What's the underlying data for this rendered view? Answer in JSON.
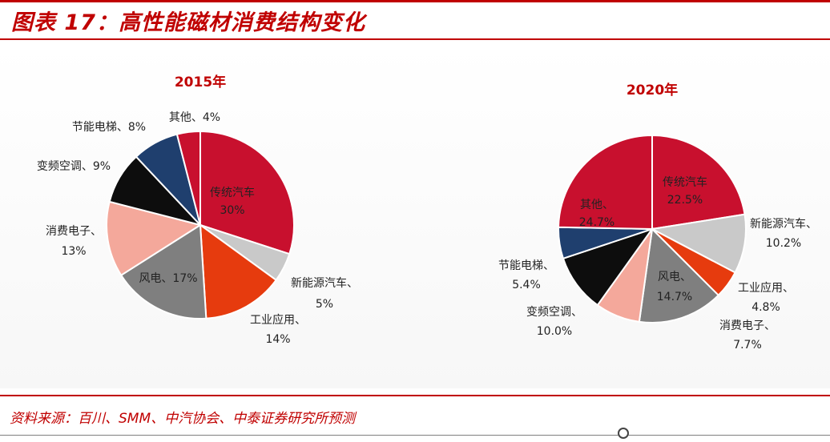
{
  "header": {
    "title": "图表 17：高性能磁材消费结构变化"
  },
  "footer": {
    "source": "资料来源：百川、SMM、中汽协会、中泰证券研究所预测"
  },
  "colors": {
    "accent": "#c00000"
  },
  "chart_data": [
    {
      "type": "pie",
      "title": "2015年",
      "slices": [
        {
          "label": "传统汽车",
          "value": 30,
          "display": "30%",
          "color": "#c8102e"
        },
        {
          "label": "新能源汽车、",
          "value": 5,
          "display": "5%",
          "color": "#c9c9c9"
        },
        {
          "label": "工业应用、",
          "value": 14,
          "display": "14%",
          "color": "#e63b0e"
        },
        {
          "label": "风电、17%",
          "value": 17,
          "display": "",
          "color": "#7f7f7f"
        },
        {
          "label": "消费电子、",
          "value": 13,
          "display": "13%",
          "color": "#f4a89b"
        },
        {
          "label": "变频空调、9%",
          "value": 9,
          "display": "",
          "color": "#0d0d0d"
        },
        {
          "label": "节能电梯、8%",
          "value": 8,
          "display": "",
          "color": "#1f3f6e"
        },
        {
          "label": "其他、4%",
          "value": 4,
          "display": "",
          "color": "#c8102e"
        }
      ]
    },
    {
      "type": "pie",
      "title": "2020年",
      "slices": [
        {
          "label": "传统汽车",
          "value": 22.5,
          "display": "22.5%",
          "color": "#c8102e"
        },
        {
          "label": "新能源汽车、",
          "value": 10.2,
          "display": "10.2%",
          "color": "#c9c9c9"
        },
        {
          "label": "工业应用、",
          "value": 4.8,
          "display": "4.8%",
          "color": "#e63b0e"
        },
        {
          "label": "风电、",
          "value": 14.7,
          "display": "14.7%",
          "color": "#7f7f7f"
        },
        {
          "label": "消费电子、",
          "value": 7.7,
          "display": "7.7%",
          "color": "#f4a89b"
        },
        {
          "label": "变频空调、",
          "value": 10.0,
          "display": "10.0%",
          "color": "#0d0d0d"
        },
        {
          "label": "节能电梯、",
          "value": 5.4,
          "display": "5.4%",
          "color": "#1f3f6e"
        },
        {
          "label": "其他、",
          "value": 24.7,
          "display": "24.7%",
          "color": "#c8102e"
        }
      ]
    }
  ]
}
